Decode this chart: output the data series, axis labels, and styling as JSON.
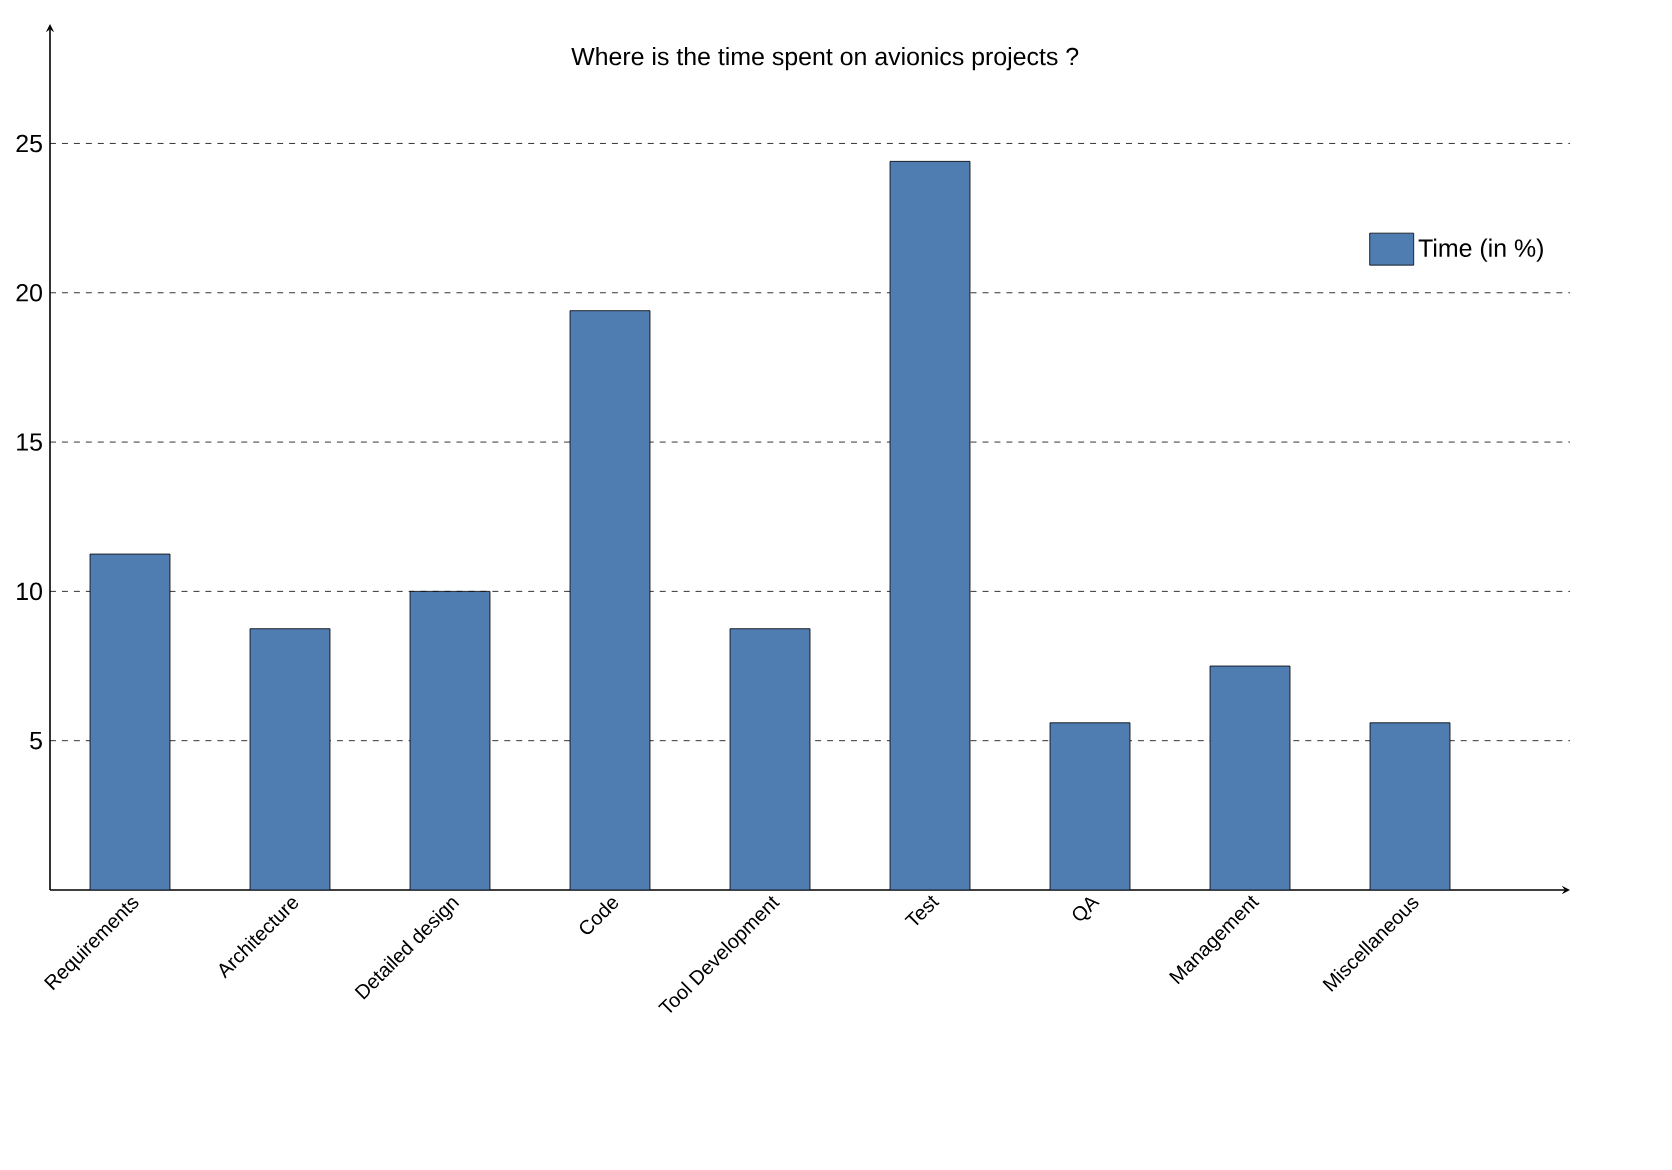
{
  "chart_data": {
    "type": "bar",
    "title": "Where is the time spent on avionics projects ?",
    "categories": [
      "Requirements",
      "Architecture",
      "Detailed design",
      "Code",
      "Tool Development",
      "Test",
      "QA",
      "Management",
      "Miscellaneous"
    ],
    "series": [
      {
        "name": "Time (in %)",
        "color": "#4f7cb1",
        "values": [
          11.25,
          8.75,
          10,
          19.4,
          8.75,
          24.4,
          5.6,
          7.5,
          5.6
        ]
      }
    ],
    "ylim": [
      0,
      29
    ],
    "yticks": [
      5,
      10,
      15,
      20,
      25
    ],
    "grid": "y",
    "legend": "top right"
  }
}
